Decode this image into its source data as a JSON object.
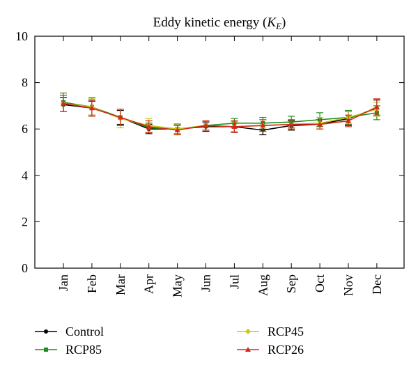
{
  "chart_data": {
    "type": "line",
    "title": "Eddy kinetic energy (",
    "title_symbol": "K",
    "title_subscript": "E",
    "title_close": ")",
    "xlabel": "",
    "ylabel": "",
    "categories": [
      "Jan",
      "Feb",
      "Mar",
      "Apr",
      "May",
      "Jun",
      "Jul",
      "Aug",
      "Sep",
      "Oct",
      "Nov",
      "Dec"
    ],
    "ylim": [
      0,
      10
    ],
    "yticks": [
      "0",
      "2",
      "4",
      "6",
      "8",
      "10"
    ],
    "grid": false,
    "legend_position": "bottom",
    "series": [
      {
        "name": "Control",
        "color": "#000000",
        "marker": "circle",
        "values": [
          7.05,
          6.9,
          6.5,
          6.0,
          6.0,
          6.1,
          6.1,
          5.95,
          6.15,
          6.2,
          6.45,
          6.9
        ],
        "errors": [
          0.3,
          0.3,
          0.3,
          0.2,
          0.22,
          0.2,
          0.25,
          0.2,
          0.2,
          0.2,
          0.3,
          0.35
        ]
      },
      {
        "name": "RCP85",
        "color": "#1e8c1e",
        "marker": "square",
        "values": [
          7.15,
          6.95,
          6.5,
          6.05,
          6.0,
          6.15,
          6.25,
          6.25,
          6.3,
          6.4,
          6.5,
          6.7
        ],
        "errors": [
          0.4,
          0.4,
          0.35,
          0.2,
          0.2,
          0.2,
          0.2,
          0.25,
          0.25,
          0.3,
          0.3,
          0.3
        ]
      },
      {
        "name": "RCP45",
        "color": "#c8c819",
        "marker": "diamond",
        "values": [
          7.1,
          6.95,
          6.45,
          6.15,
          6.0,
          6.15,
          6.1,
          6.15,
          6.2,
          6.25,
          6.5,
          6.85
        ],
        "errors": [
          0.35,
          0.35,
          0.4,
          0.3,
          0.22,
          0.2,
          0.2,
          0.25,
          0.2,
          0.25,
          0.25,
          0.3
        ]
      },
      {
        "name": "RCP26",
        "color": "#d42a1a",
        "marker": "triangle",
        "values": [
          7.1,
          6.9,
          6.5,
          6.1,
          5.95,
          6.15,
          6.1,
          6.15,
          6.2,
          6.2,
          6.35,
          6.95
        ],
        "errors": [
          0.35,
          0.35,
          0.35,
          0.25,
          0.2,
          0.2,
          0.25,
          0.25,
          0.2,
          0.2,
          0.25,
          0.35
        ]
      }
    ]
  }
}
